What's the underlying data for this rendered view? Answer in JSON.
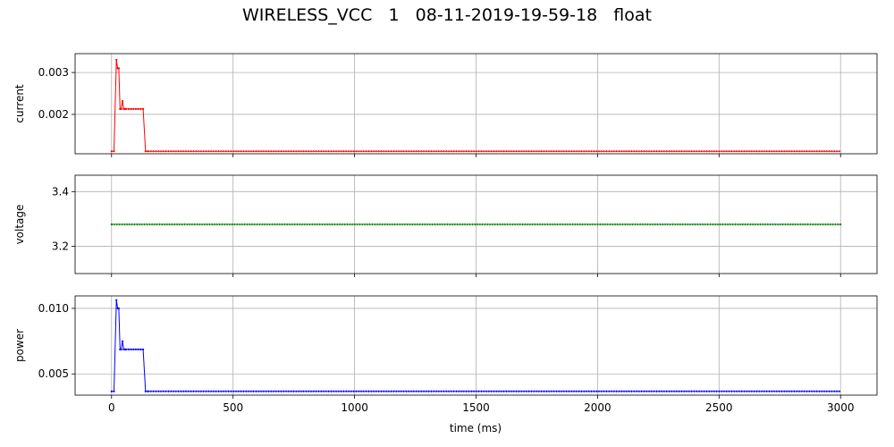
{
  "figure": {
    "title": "WIRELESS_VCC   1   08-11-2019-19-59-18   float"
  },
  "chart_data": [
    {
      "type": "line",
      "ylabel": "current",
      "xlabel": "",
      "xlim": [
        -150,
        3150
      ],
      "ylim": [
        0.00106,
        0.00345
      ],
      "xticks": [
        0,
        500,
        1000,
        1500,
        2000,
        2500,
        3000
      ],
      "xtick_labels": [
        "",
        "",
        "",
        "",
        "",
        "",
        ""
      ],
      "yticks": [
        0.002,
        0.003
      ],
      "ytick_labels": [
        "0.002",
        "0.003"
      ],
      "grid": true,
      "color": "#ff0000",
      "series": [
        {
          "x": [
            0,
            10,
            20,
            25,
            30,
            35,
            40,
            45,
            50,
            55,
            60,
            70,
            80,
            90,
            100,
            110,
            120,
            130,
            140,
            150,
            3000
          ],
          "y": [
            0.00112,
            0.00112,
            0.0033,
            0.0031,
            0.0031,
            0.00213,
            0.00213,
            0.00232,
            0.00213,
            0.00213,
            0.00213,
            0.00213,
            0.00213,
            0.00213,
            0.00213,
            0.00213,
            0.00213,
            0.00213,
            0.00112,
            0.00112,
            0.00112
          ]
        }
      ]
    },
    {
      "type": "line",
      "ylabel": "voltage",
      "xlabel": "",
      "xlim": [
        -150,
        3150
      ],
      "ylim": [
        3.1,
        3.46
      ],
      "xticks": [
        0,
        500,
        1000,
        1500,
        2000,
        2500,
        3000
      ],
      "xtick_labels": [
        "",
        "",
        "",
        "",
        "",
        "",
        ""
      ],
      "yticks": [
        3.2,
        3.4
      ],
      "ytick_labels": [
        "3.2",
        "3.4"
      ],
      "grid": true,
      "color": "#008000",
      "series": [
        {
          "x": [
            0,
            3000
          ],
          "y": [
            3.28,
            3.28
          ]
        }
      ]
    },
    {
      "type": "line",
      "ylabel": "power",
      "xlabel": "time (ms)",
      "xlim": [
        -150,
        3150
      ],
      "ylim": [
        0.00338,
        0.01095
      ],
      "xticks": [
        0,
        500,
        1000,
        1500,
        2000,
        2500,
        3000
      ],
      "xtick_labels": [
        "0",
        "500",
        "1000",
        "1500",
        "2000",
        "2500",
        "3000"
      ],
      "yticks": [
        0.005,
        0.01
      ],
      "ytick_labels": [
        "0.005",
        "0.010"
      ],
      "grid": true,
      "color": "#0000ff",
      "series": [
        {
          "x": [
            0,
            10,
            20,
            25,
            30,
            35,
            40,
            45,
            50,
            55,
            60,
            70,
            80,
            90,
            100,
            110,
            120,
            130,
            140,
            150,
            3000
          ],
          "y": [
            0.00367,
            0.00367,
            0.01063,
            0.01,
            0.01,
            0.00687,
            0.00687,
            0.00749,
            0.00687,
            0.00687,
            0.00687,
            0.00687,
            0.00687,
            0.00687,
            0.00687,
            0.00687,
            0.00687,
            0.00687,
            0.00367,
            0.00367,
            0.00367
          ]
        }
      ]
    }
  ]
}
